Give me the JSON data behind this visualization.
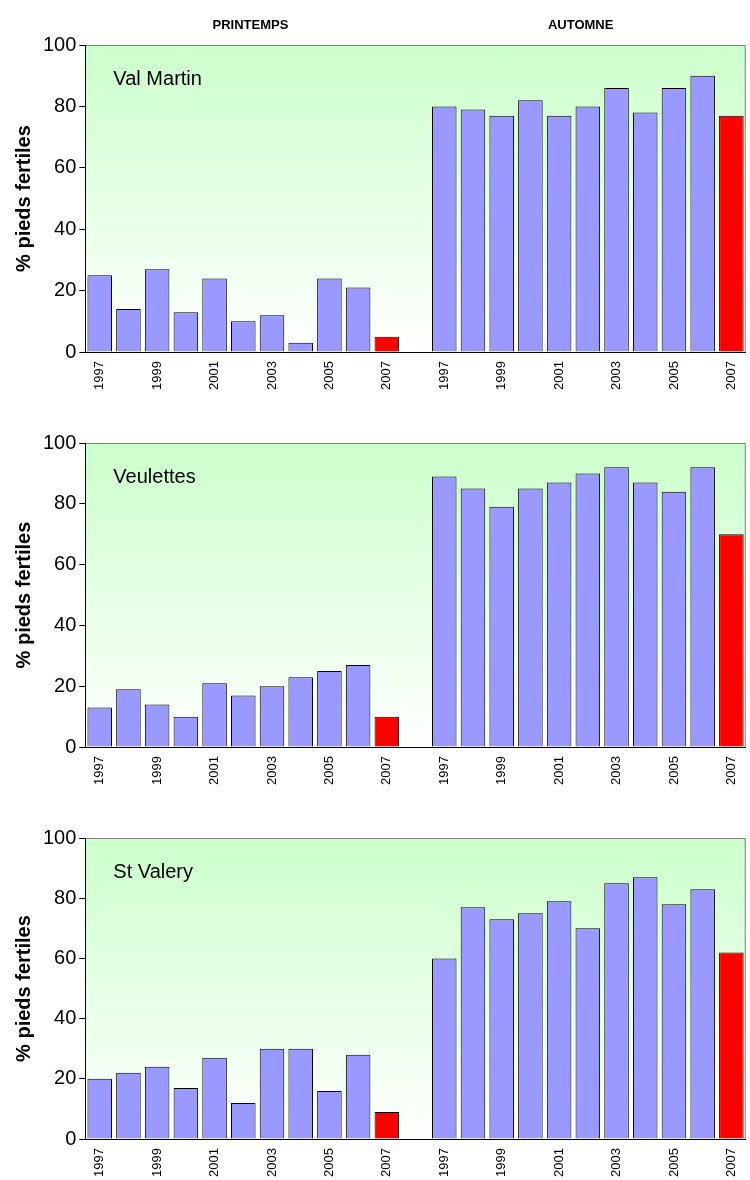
{
  "chart_data": [
    {
      "type": "bar",
      "title": "Val Martin",
      "ylabel": "% pieds fertiles",
      "annotations": [
        "PRINTEMPS",
        "AUTOMNE"
      ],
      "categories": [
        "1997",
        null,
        "1999",
        null,
        "2001",
        null,
        "2003",
        null,
        "2005",
        null,
        "2007",
        null,
        "1997",
        null,
        "1999",
        null,
        "2001",
        null,
        "2003",
        null,
        "2005",
        null,
        "2007"
      ],
      "values": [
        25,
        14,
        27,
        13,
        24,
        10,
        12,
        3,
        24,
        21,
        5,
        null,
        80,
        79,
        77,
        82,
        77,
        80,
        86,
        78,
        86,
        90,
        77
      ],
      "colors": [
        "#9999ff",
        "#9999ff",
        "#9999ff",
        "#9999ff",
        "#9999ff",
        "#9999ff",
        "#9999ff",
        "#9999ff",
        "#9999ff",
        "#9999ff",
        "#ff0000",
        "#9999ff",
        "#9999ff",
        "#9999ff",
        "#9999ff",
        "#9999ff",
        "#9999ff",
        "#9999ff",
        "#9999ff",
        "#9999ff",
        "#9999ff",
        "#9999ff",
        "#ff0000"
      ],
      "ylim": [
        0,
        100
      ],
      "yticks": [
        0,
        20,
        40,
        60,
        80,
        100
      ],
      "grid": false,
      "legend": false
    },
    {
      "type": "bar",
      "title": "Veulettes",
      "ylabel": "% pieds fertiles",
      "categories": [
        "1997",
        null,
        "1999",
        null,
        "2001",
        null,
        "2003",
        null,
        "2005",
        null,
        "2007",
        null,
        "1997",
        null,
        "1999",
        null,
        "2001",
        null,
        "2003",
        null,
        "2005",
        null,
        "2007"
      ],
      "values": [
        13,
        19,
        14,
        10,
        21,
        17,
        20,
        23,
        25,
        27,
        10,
        null,
        89,
        85,
        79,
        85,
        87,
        90,
        92,
        87,
        84,
        92,
        70
      ],
      "colors": [
        "#9999ff",
        "#9999ff",
        "#9999ff",
        "#9999ff",
        "#9999ff",
        "#9999ff",
        "#9999ff",
        "#9999ff",
        "#9999ff",
        "#9999ff",
        "#ff0000",
        "#9999ff",
        "#9999ff",
        "#9999ff",
        "#9999ff",
        "#9999ff",
        "#9999ff",
        "#9999ff",
        "#9999ff",
        "#9999ff",
        "#9999ff",
        "#9999ff",
        "#ff0000"
      ],
      "ylim": [
        0,
        100
      ],
      "yticks": [
        0,
        20,
        40,
        60,
        80,
        100
      ],
      "grid": false,
      "legend": false
    },
    {
      "type": "bar",
      "title": "St Valery",
      "ylabel": "% pieds fertiles",
      "categories": [
        "1997",
        null,
        "1999",
        null,
        "2001",
        null,
        "2003",
        null,
        "2005",
        null,
        "2007",
        null,
        "1997",
        null,
        "1999",
        null,
        "2001",
        null,
        "2003",
        null,
        "2005",
        null,
        "2007"
      ],
      "values": [
        20,
        22,
        24,
        17,
        27,
        12,
        30,
        30,
        16,
        28,
        9,
        null,
        60,
        77,
        73,
        75,
        79,
        70,
        85,
        87,
        78,
        83,
        62
      ],
      "colors": [
        "#9999ff",
        "#9999ff",
        "#9999ff",
        "#9999ff",
        "#9999ff",
        "#9999ff",
        "#9999ff",
        "#9999ff",
        "#9999ff",
        "#9999ff",
        "#ff0000",
        "#9999ff",
        "#9999ff",
        "#9999ff",
        "#9999ff",
        "#9999ff",
        "#9999ff",
        "#9999ff",
        "#9999ff",
        "#9999ff",
        "#9999ff",
        "#9999ff",
        "#ff0000"
      ],
      "ylim": [
        0,
        100
      ],
      "yticks": [
        0,
        20,
        40,
        60,
        80,
        100
      ],
      "grid": false,
      "legend": false
    }
  ]
}
